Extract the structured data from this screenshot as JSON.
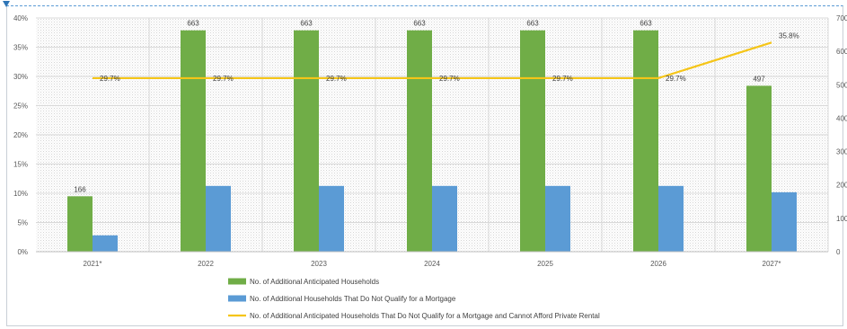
{
  "chart_data": {
    "type": "bar",
    "categories": [
      "2021*",
      "2022",
      "2023",
      "2024",
      "2025",
      "2026",
      "2027*"
    ],
    "series": [
      {
        "name": "No. of Additional Anticipated Households",
        "kind": "bar",
        "axis": "right",
        "color": "#70ad47",
        "values": [
          166,
          663,
          663,
          663,
          663,
          663,
          497
        ],
        "labels": [
          "166",
          "663",
          "663",
          "663",
          "663",
          "663",
          "497"
        ]
      },
      {
        "name": "No. of Additional Households That Do Not Qualify for a Mortgage",
        "kind": "bar",
        "axis": "right",
        "color": "#5b9bd5",
        "values": [
          49,
          197,
          197,
          197,
          197,
          197,
          178
        ]
      },
      {
        "name": "No. of Additional Anticipated Households That Do Not Qualify for a Mortgage  and Cannot Afford Private Rental",
        "kind": "line",
        "axis": "left",
        "color": "#f5c518",
        "values": [
          29.7,
          29.7,
          29.7,
          29.7,
          29.7,
          29.7,
          35.8
        ],
        "labels": [
          "29.7%",
          "29.7%",
          "29.7%",
          "29.7%",
          "29.7%",
          "29.7%",
          "35.8%"
        ]
      }
    ],
    "y_left": {
      "ylim": [
        0,
        40
      ],
      "ticks": [
        "0%",
        "5%",
        "10%",
        "15%",
        "20%",
        "25%",
        "30%",
        "35%",
        "40%"
      ]
    },
    "y_right": {
      "ylim": [
        0,
        700
      ],
      "ticks": [
        "0",
        "100",
        "200",
        "300",
        "400",
        "500",
        "600",
        "700"
      ]
    },
    "legend": "bottom",
    "grid": true
  }
}
